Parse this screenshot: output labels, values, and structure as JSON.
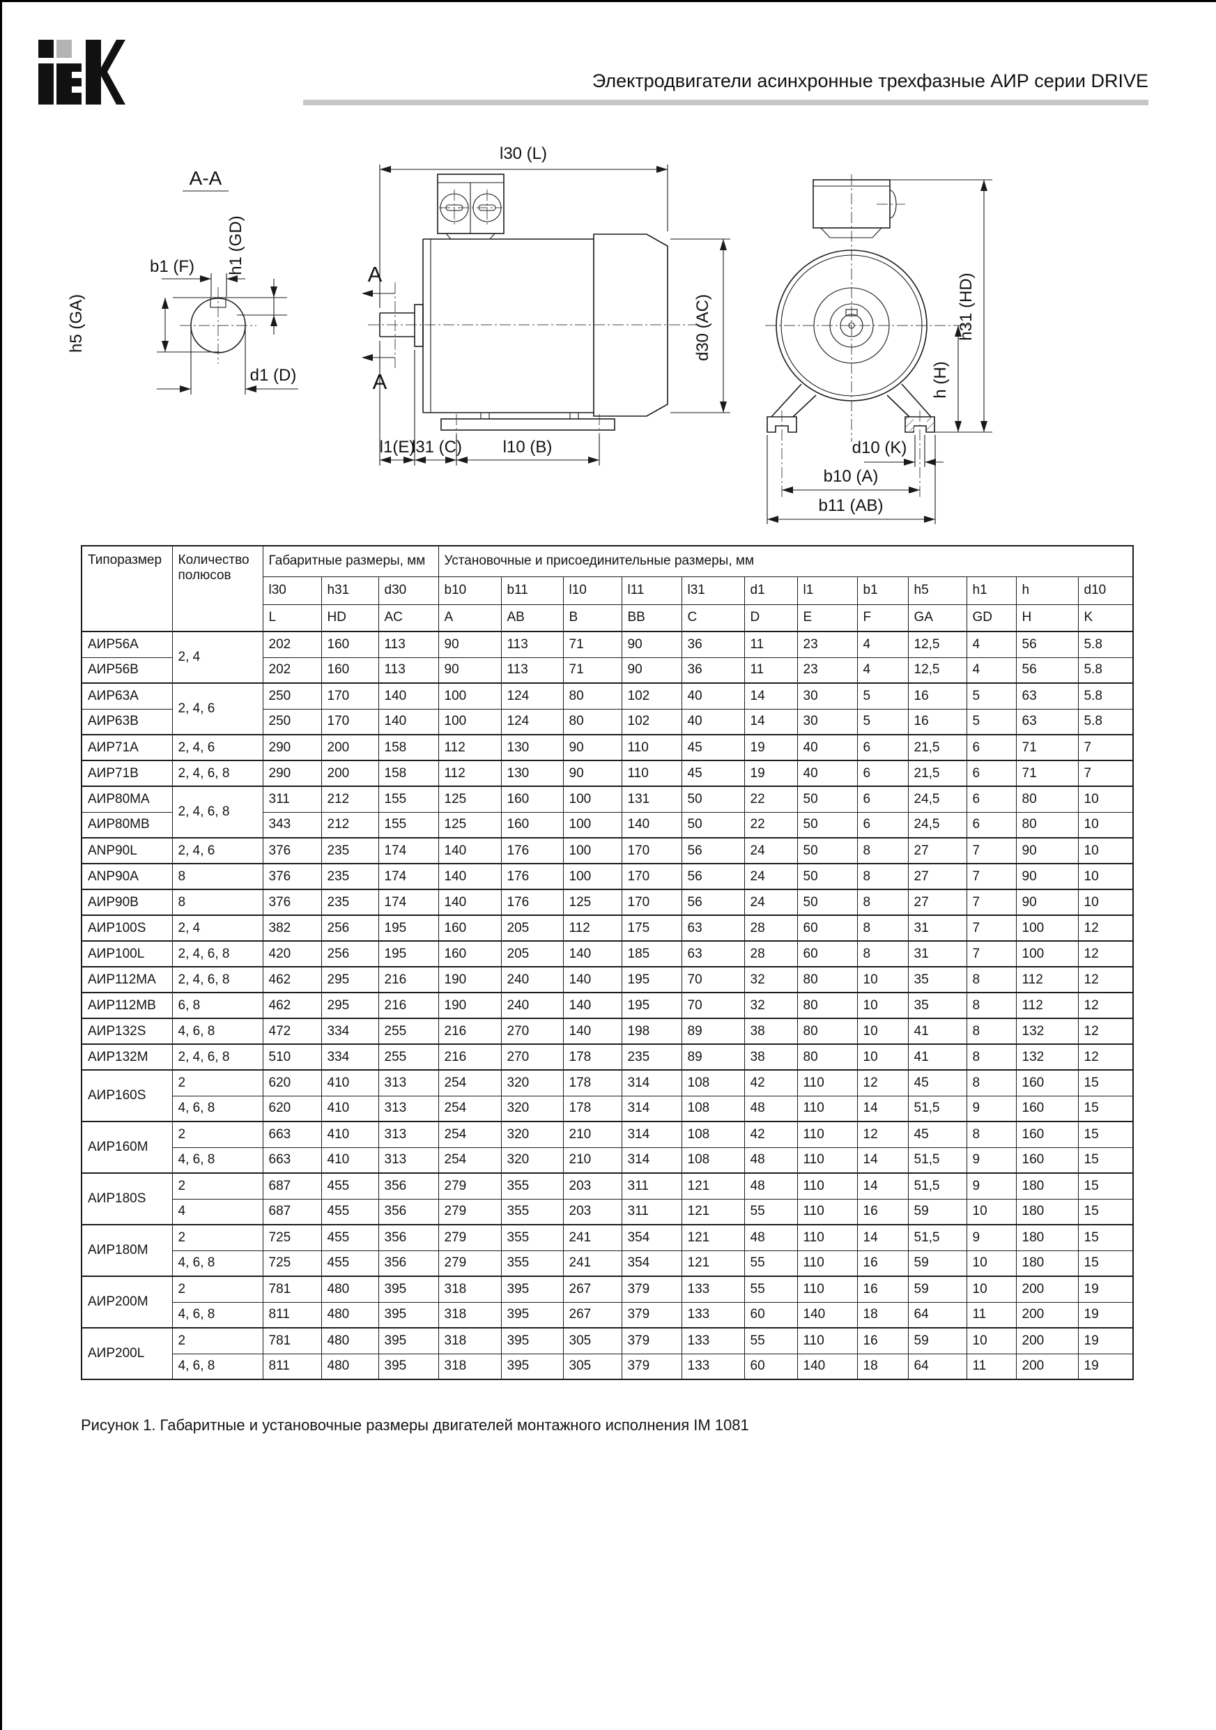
{
  "page": {
    "brand": "IEK",
    "header_title": "Электродвигатели асинхронные трехфазные АИР серии DRIVE",
    "caption": "Рисунок 1. Габаритные и установочные размеры двигателей монтажного исполнения IM 1081"
  },
  "drawing": {
    "section_title": "A-A",
    "marker": "A",
    "labels": {
      "b1_f": "b1 (F)",
      "h1_gd": "h1 (GD)",
      "h5_ga": "h5 (GA)",
      "d1_d": "d1 (D)",
      "l30_l": "l30 (L)",
      "d30_ac": "d30 (AC)",
      "l1_e": "l1(E)",
      "l31_c": "l31 (C)",
      "l10_b": "l10 (B)",
      "h31_hd": "h31 (HD)",
      "h_h": "h (H)",
      "d10_k": "d10 (K)",
      "b10_a": "b10 (A)",
      "b11_ab": "b11 (AB)"
    }
  },
  "table": {
    "header": {
      "type_size": "Типоразмер",
      "poles": "Количество полюсов",
      "group_overall": "Габаритные размеры, мм",
      "group_mounting": "Установочные и присоединительные размеры, мм",
      "dims": [
        "l30",
        "h31",
        "d30",
        "b10",
        "b11",
        "l10",
        "l11",
        "l31",
        "d1",
        "l1",
        "b1",
        "h5",
        "h1",
        "h",
        "d10"
      ],
      "letters": [
        "L",
        "HD",
        "AC",
        "A",
        "AB",
        "B",
        "BB",
        "C",
        "D",
        "E",
        "F",
        "GA",
        "GD",
        "H",
        "K"
      ]
    },
    "rows": [
      {
        "type": "АИР56А",
        "type_span": 1,
        "poles": "2, 4",
        "poles_span": 2,
        "group_start": true,
        "values": [
          202,
          160,
          113,
          90,
          113,
          71,
          90,
          36,
          11,
          23,
          4,
          "12,5",
          4,
          56,
          "5.8"
        ]
      },
      {
        "type": "АИР56В",
        "type_span": 1,
        "poles": null,
        "poles_span": 0,
        "group_start": false,
        "values": [
          202,
          160,
          113,
          90,
          113,
          71,
          90,
          36,
          11,
          23,
          4,
          "12,5",
          4,
          56,
          "5.8"
        ]
      },
      {
        "type": "АИР63А",
        "type_span": 1,
        "poles": "2, 4, 6",
        "poles_span": 2,
        "group_start": true,
        "values": [
          250,
          170,
          140,
          100,
          124,
          80,
          102,
          40,
          14,
          30,
          5,
          16,
          5,
          63,
          "5.8"
        ]
      },
      {
        "type": "АИР63В",
        "type_span": 1,
        "poles": null,
        "poles_span": 0,
        "group_start": false,
        "values": [
          250,
          170,
          140,
          100,
          124,
          80,
          102,
          40,
          14,
          30,
          5,
          16,
          5,
          63,
          "5.8"
        ]
      },
      {
        "type": "АИР71А",
        "type_span": 1,
        "poles": "2, 4, 6",
        "poles_span": 1,
        "group_start": true,
        "values": [
          290,
          200,
          158,
          112,
          130,
          90,
          110,
          45,
          19,
          40,
          6,
          "21,5",
          6,
          71,
          7
        ]
      },
      {
        "type": "АИР71В",
        "type_span": 1,
        "poles": "2, 4, 6, 8",
        "poles_span": 1,
        "group_start": true,
        "values": [
          290,
          200,
          158,
          112,
          130,
          90,
          110,
          45,
          19,
          40,
          6,
          "21,5",
          6,
          71,
          7
        ]
      },
      {
        "type": "АИР80МА",
        "type_span": 1,
        "poles": "2, 4, 6, 8",
        "poles_span": 2,
        "group_start": true,
        "values": [
          311,
          212,
          155,
          125,
          160,
          100,
          131,
          50,
          22,
          50,
          6,
          "24,5",
          6,
          80,
          10
        ]
      },
      {
        "type": "АИР80МВ",
        "type_span": 1,
        "poles": null,
        "poles_span": 0,
        "group_start": false,
        "values": [
          343,
          212,
          155,
          125,
          160,
          100,
          140,
          50,
          22,
          50,
          6,
          "24,5",
          6,
          80,
          10
        ]
      },
      {
        "type": "ANP90L",
        "type_span": 1,
        "poles": "2, 4, 6",
        "poles_span": 1,
        "group_start": true,
        "values": [
          376,
          235,
          174,
          140,
          176,
          100,
          170,
          56,
          24,
          50,
          8,
          27,
          7,
          90,
          10
        ]
      },
      {
        "type": "ANP90A",
        "type_span": 1,
        "poles": "8",
        "poles_span": 1,
        "group_start": true,
        "values": [
          376,
          235,
          174,
          140,
          176,
          100,
          170,
          56,
          24,
          50,
          8,
          27,
          7,
          90,
          10
        ]
      },
      {
        "type": "АИР90В",
        "type_span": 1,
        "poles": "8",
        "poles_span": 1,
        "group_start": true,
        "values": [
          376,
          235,
          174,
          140,
          176,
          125,
          170,
          56,
          24,
          50,
          8,
          27,
          7,
          90,
          10
        ]
      },
      {
        "type": "АИР100S",
        "type_span": 1,
        "poles": "2, 4",
        "poles_span": 1,
        "group_start": true,
        "values": [
          382,
          256,
          195,
          160,
          205,
          112,
          175,
          63,
          28,
          60,
          8,
          31,
          7,
          100,
          12
        ]
      },
      {
        "type": "АИР100L",
        "type_span": 1,
        "poles": "2, 4, 6, 8",
        "poles_span": 1,
        "group_start": true,
        "values": [
          420,
          256,
          195,
          160,
          205,
          140,
          185,
          63,
          28,
          60,
          8,
          31,
          7,
          100,
          12
        ]
      },
      {
        "type": "АИР112МА",
        "type_span": 1,
        "poles": "2, 4, 6, 8",
        "poles_span": 1,
        "group_start": true,
        "values": [
          462,
          295,
          216,
          190,
          240,
          140,
          195,
          70,
          32,
          80,
          10,
          35,
          8,
          112,
          12
        ]
      },
      {
        "type": "АИР112МВ",
        "type_span": 1,
        "poles": "6, 8",
        "poles_span": 1,
        "group_start": true,
        "values": [
          462,
          295,
          216,
          190,
          240,
          140,
          195,
          70,
          32,
          80,
          10,
          35,
          8,
          112,
          12
        ]
      },
      {
        "type": "АИР132S",
        "type_span": 1,
        "poles": "4, 6, 8",
        "poles_span": 1,
        "group_start": true,
        "values": [
          472,
          334,
          255,
          216,
          270,
          140,
          198,
          89,
          38,
          80,
          10,
          41,
          8,
          132,
          12
        ]
      },
      {
        "type": "АИР132М",
        "type_span": 1,
        "poles": "2, 4, 6, 8",
        "poles_span": 1,
        "group_start": true,
        "values": [
          510,
          334,
          255,
          216,
          270,
          178,
          235,
          89,
          38,
          80,
          10,
          41,
          8,
          132,
          12
        ]
      },
      {
        "type": "АИР160S",
        "type_span": 2,
        "poles": "2",
        "poles_span": 1,
        "group_start": true,
        "values": [
          620,
          410,
          313,
          254,
          320,
          178,
          314,
          108,
          42,
          110,
          12,
          45,
          8,
          160,
          15
        ]
      },
      {
        "type": null,
        "type_span": 0,
        "poles": "4, 6, 8",
        "poles_span": 1,
        "group_start": false,
        "values": [
          620,
          410,
          313,
          254,
          320,
          178,
          314,
          108,
          48,
          110,
          14,
          "51,5",
          9,
          160,
          15
        ]
      },
      {
        "type": "АИР160М",
        "type_span": 2,
        "poles": "2",
        "poles_span": 1,
        "group_start": true,
        "values": [
          663,
          410,
          313,
          254,
          320,
          210,
          314,
          108,
          42,
          110,
          12,
          45,
          8,
          160,
          15
        ]
      },
      {
        "type": null,
        "type_span": 0,
        "poles": "4, 6, 8",
        "poles_span": 1,
        "group_start": false,
        "values": [
          663,
          410,
          313,
          254,
          320,
          210,
          314,
          108,
          48,
          110,
          14,
          "51,5",
          9,
          160,
          15
        ]
      },
      {
        "type": "АИР180S",
        "type_span": 2,
        "poles": "2",
        "poles_span": 1,
        "group_start": true,
        "values": [
          687,
          455,
          356,
          279,
          355,
          203,
          311,
          121,
          48,
          110,
          14,
          "51,5",
          9,
          180,
          15
        ]
      },
      {
        "type": null,
        "type_span": 0,
        "poles": "4",
        "poles_span": 1,
        "group_start": false,
        "values": [
          687,
          455,
          356,
          279,
          355,
          203,
          311,
          121,
          55,
          110,
          16,
          59,
          10,
          180,
          15
        ]
      },
      {
        "type": "АИР180М",
        "type_span": 2,
        "poles": "2",
        "poles_span": 1,
        "group_start": true,
        "values": [
          725,
          455,
          356,
          279,
          355,
          241,
          354,
          121,
          48,
          110,
          14,
          "51,5",
          9,
          180,
          15
        ]
      },
      {
        "type": null,
        "type_span": 0,
        "poles": "4, 6, 8",
        "poles_span": 1,
        "group_start": false,
        "values": [
          725,
          455,
          356,
          279,
          355,
          241,
          354,
          121,
          55,
          110,
          16,
          59,
          10,
          180,
          15
        ]
      },
      {
        "type": "АИР200М",
        "type_span": 2,
        "poles": "2",
        "poles_span": 1,
        "group_start": true,
        "values": [
          781,
          480,
          395,
          318,
          395,
          267,
          379,
          133,
          55,
          110,
          16,
          59,
          10,
          200,
          19
        ]
      },
      {
        "type": null,
        "type_span": 0,
        "poles": "4, 6, 8",
        "poles_span": 1,
        "group_start": false,
        "values": [
          811,
          480,
          395,
          318,
          395,
          267,
          379,
          133,
          60,
          140,
          18,
          64,
          11,
          200,
          19
        ]
      },
      {
        "type": "АИР200L",
        "type_span": 2,
        "poles": "2",
        "poles_span": 1,
        "group_start": true,
        "values": [
          781,
          480,
          395,
          318,
          395,
          305,
          379,
          133,
          55,
          110,
          16,
          59,
          10,
          200,
          19
        ]
      },
      {
        "type": null,
        "type_span": 0,
        "poles": "4, 6, 8",
        "poles_span": 1,
        "group_start": false,
        "values": [
          811,
          480,
          395,
          318,
          395,
          305,
          379,
          133,
          60,
          140,
          18,
          64,
          11,
          200,
          19
        ]
      }
    ]
  }
}
